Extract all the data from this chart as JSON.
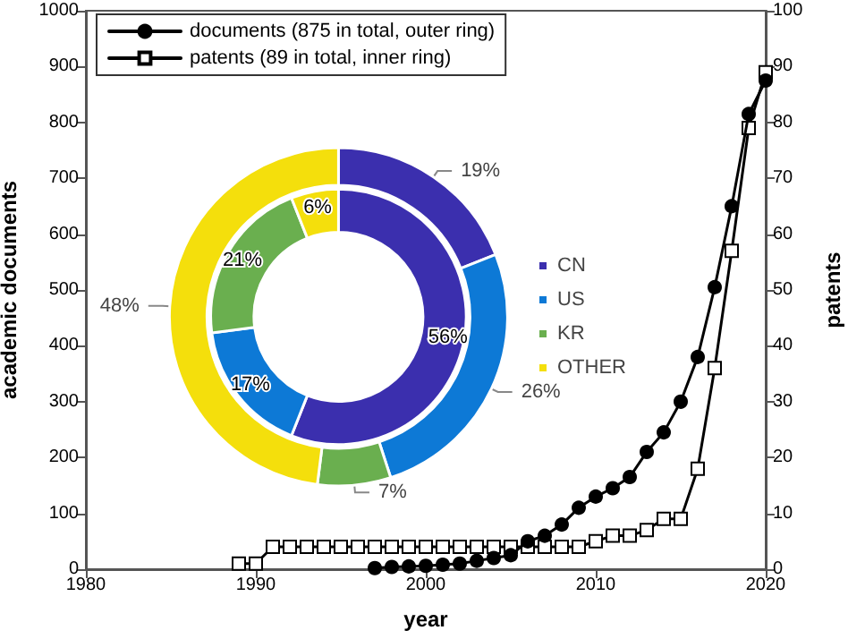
{
  "chart_data": [
    {
      "type": "line",
      "xlabel": "year",
      "ylabel": "academic documents",
      "y2label": "patents",
      "xlim": [
        1980,
        2020
      ],
      "xticks": [
        1980,
        1990,
        2000,
        2010,
        2020
      ],
      "ylim": [
        0,
        1000
      ],
      "yticks": [
        0,
        100,
        200,
        300,
        400,
        500,
        600,
        700,
        800,
        900,
        1000
      ],
      "y2lim": [
        0,
        100
      ],
      "y2ticks": [
        0,
        10,
        20,
        30,
        40,
        50,
        60,
        70,
        80,
        90,
        100
      ],
      "grid": false,
      "legend": "top left",
      "line_style": "solid",
      "series": [
        {
          "name": "documents (875 in total, outer ring)",
          "color": "#000000",
          "marker": "circle",
          "x": [
            1997,
            1998,
            1999,
            2000,
            2001,
            2002,
            2003,
            2004,
            2005,
            2006,
            2007,
            2008,
            2009,
            2010,
            2011,
            2012,
            2013,
            2014,
            2015,
            2016,
            2017,
            2018,
            2019,
            2020
          ],
          "values": [
            2,
            4,
            5,
            6,
            8,
            10,
            15,
            20,
            25,
            50,
            60,
            80,
            110,
            130,
            145,
            165,
            210,
            245,
            300,
            380,
            505,
            650,
            815,
            875
          ]
        },
        {
          "name": "patents (89 in total, inner ring)",
          "color": "#000000",
          "marker": "square",
          "axis": "y2",
          "x": [
            1989,
            1990,
            1991,
            1992,
            1993,
            1994,
            1995,
            1996,
            1997,
            1998,
            1999,
            2000,
            2001,
            2002,
            2003,
            2004,
            2005,
            2006,
            2007,
            2008,
            2009,
            2010,
            2011,
            2012,
            2013,
            2014,
            2015,
            2016,
            2017,
            2018,
            2019,
            2020
          ],
          "values": [
            1,
            1,
            4,
            4,
            4,
            4,
            4,
            4,
            4,
            4,
            4,
            4,
            4,
            4,
            4,
            4,
            4,
            4,
            4,
            4,
            4,
            5,
            6,
            6,
            7,
            9,
            9,
            18,
            36,
            57,
            79,
            89
          ]
        }
      ]
    },
    {
      "type": "donut",
      "categories": [
        "CN",
        "US",
        "KR",
        "OTHER"
      ],
      "colors": [
        "#3b2fae",
        "#0d79d6",
        "#6aaf4f",
        "#f4df0c"
      ],
      "legend": "right",
      "series": [
        {
          "values": [
            19,
            26,
            7,
            48
          ],
          "value_labels": [
            "19%",
            "26%",
            "7%",
            "48%"
          ]
        },
        {
          "values": [
            56,
            17,
            21,
            6
          ],
          "value_labels": [
            "56%",
            "17%",
            "21%",
            "6%"
          ]
        }
      ]
    }
  ]
}
